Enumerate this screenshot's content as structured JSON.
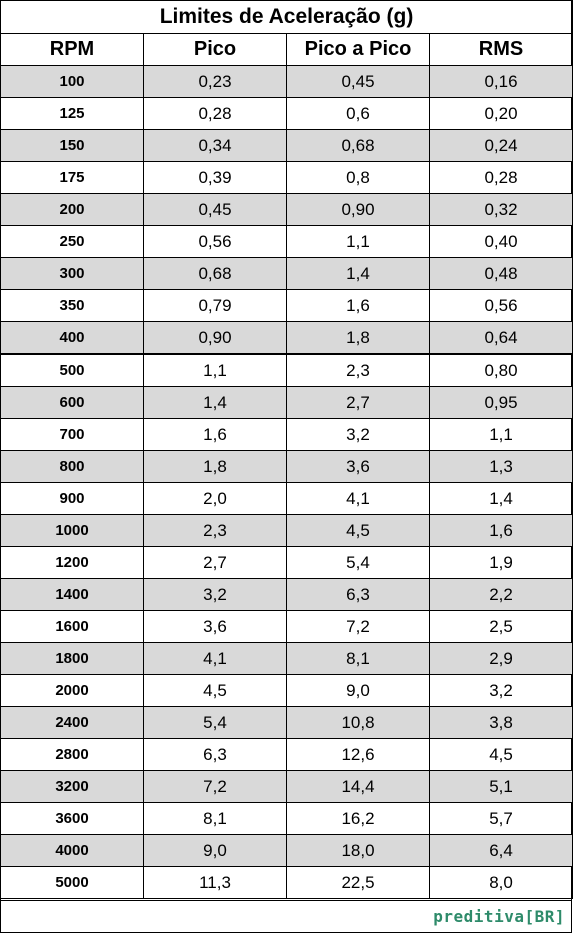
{
  "title": "Limites de Aceleração (g)",
  "headers": [
    "RPM",
    "Pico",
    "Pico a Pico",
    "RMS"
  ],
  "rows": [
    [
      "100",
      "0,23",
      "0,45",
      "0,16"
    ],
    [
      "125",
      "0,28",
      "0,6",
      "0,20"
    ],
    [
      "150",
      "0,34",
      "0,68",
      "0,24"
    ],
    [
      "175",
      "0,39",
      "0,8",
      "0,28"
    ],
    [
      "200",
      "0,45",
      "0,90",
      "0,32"
    ],
    [
      "250",
      "0,56",
      "1,1",
      "0,40"
    ],
    [
      "300",
      "0,68",
      "1,4",
      "0,48"
    ],
    [
      "350",
      "0,79",
      "1,6",
      "0,56"
    ],
    [
      "400",
      "0,90",
      "1,8",
      "0,64"
    ],
    [
      "500",
      "1,1",
      "2,3",
      "0,80"
    ],
    [
      "600",
      "1,4",
      "2,7",
      "0,95"
    ],
    [
      "700",
      "1,6",
      "3,2",
      "1,1"
    ],
    [
      "800",
      "1,8",
      "3,6",
      "1,3"
    ],
    [
      "900",
      "2,0",
      "4,1",
      "1,4"
    ],
    [
      "1000",
      "2,3",
      "4,5",
      "1,6"
    ],
    [
      "1200",
      "2,7",
      "5,4",
      "1,9"
    ],
    [
      "1400",
      "3,2",
      "6,3",
      "2,2"
    ],
    [
      "1600",
      "3,6",
      "7,2",
      "2,5"
    ],
    [
      "1800",
      "4,1",
      "8,1",
      "2,9"
    ],
    [
      "2000",
      "4,5",
      "9,0",
      "3,2"
    ],
    [
      "2400",
      "5,4",
      "10,8",
      "3,8"
    ],
    [
      "2800",
      "6,3",
      "12,6",
      "4,5"
    ],
    [
      "3200",
      "7,2",
      "14,4",
      "5,1"
    ],
    [
      "3600",
      "8,1",
      "16,2",
      "5,7"
    ],
    [
      "4000",
      "9,0",
      "18,0",
      "6,4"
    ],
    [
      "5000",
      "11,3",
      "22,5",
      "8,0"
    ]
  ],
  "shade_color": "#d9d9d9",
  "logo": {
    "text": "preditiva[BR]",
    "color": "#2e8b6a"
  }
}
